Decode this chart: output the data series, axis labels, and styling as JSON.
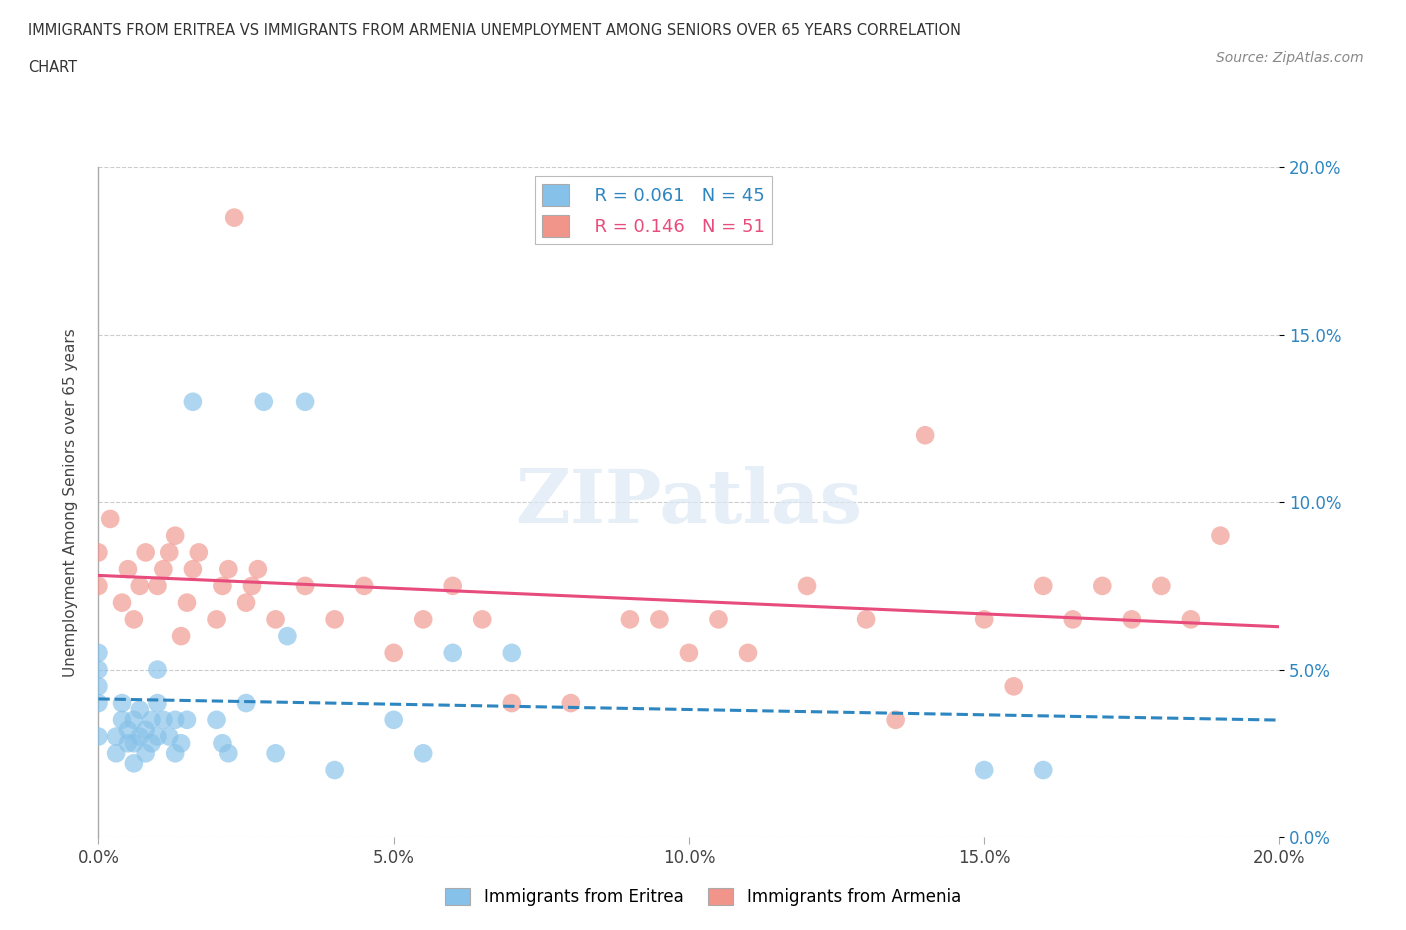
{
  "title_line1": "IMMIGRANTS FROM ERITREA VS IMMIGRANTS FROM ARMENIA UNEMPLOYMENT AMONG SENIORS OVER 65 YEARS CORRELATION",
  "title_line2": "CHART",
  "source": "Source: ZipAtlas.com",
  "ylabel": "Unemployment Among Seniors over 65 years",
  "xlim": [
    0.0,
    0.2
  ],
  "ylim": [
    0.0,
    0.2
  ],
  "xticks": [
    0.0,
    0.05,
    0.1,
    0.15,
    0.2
  ],
  "yticks": [
    0.0,
    0.05,
    0.1,
    0.15,
    0.2
  ],
  "xticklabels": [
    "0.0%",
    "5.0%",
    "10.0%",
    "15.0%",
    "20.0%"
  ],
  "yticklabels": [
    "0.0%",
    "5.0%",
    "10.0%",
    "15.0%",
    "20.0%"
  ],
  "legend_eritrea_R": "0.061",
  "legend_eritrea_N": "45",
  "legend_armenia_R": "0.146",
  "legend_armenia_N": "51",
  "eritrea_color": "#85C1E9",
  "armenia_color": "#F1948A",
  "eritrea_line_color": "#2E86C1",
  "armenia_line_color": "#E74C7C",
  "background_color": "#ffffff",
  "grid_color": "#cccccc",
  "watermark": "ZIPatlas",
  "eritrea_x": [
    0.0,
    0.0,
    0.0,
    0.0,
    0.0,
    0.003,
    0.003,
    0.004,
    0.004,
    0.005,
    0.005,
    0.006,
    0.006,
    0.006,
    0.007,
    0.007,
    0.008,
    0.008,
    0.009,
    0.009,
    0.01,
    0.01,
    0.01,
    0.011,
    0.012,
    0.013,
    0.013,
    0.014,
    0.015,
    0.016,
    0.02,
    0.021,
    0.022,
    0.025,
    0.028,
    0.03,
    0.032,
    0.035,
    0.04,
    0.05,
    0.055,
    0.06,
    0.07,
    0.15,
    0.16
  ],
  "eritrea_y": [
    0.03,
    0.04,
    0.045,
    0.05,
    0.055,
    0.025,
    0.03,
    0.035,
    0.04,
    0.028,
    0.032,
    0.022,
    0.028,
    0.035,
    0.03,
    0.038,
    0.025,
    0.032,
    0.028,
    0.035,
    0.03,
    0.04,
    0.05,
    0.035,
    0.03,
    0.025,
    0.035,
    0.028,
    0.035,
    0.13,
    0.035,
    0.028,
    0.025,
    0.04,
    0.13,
    0.025,
    0.06,
    0.13,
    0.02,
    0.035,
    0.025,
    0.055,
    0.055,
    0.02,
    0.02
  ],
  "armenia_x": [
    0.0,
    0.0,
    0.002,
    0.004,
    0.005,
    0.006,
    0.007,
    0.008,
    0.01,
    0.011,
    0.012,
    0.013,
    0.014,
    0.015,
    0.016,
    0.017,
    0.02,
    0.021,
    0.022,
    0.023,
    0.025,
    0.026,
    0.027,
    0.03,
    0.035,
    0.04,
    0.045,
    0.05,
    0.055,
    0.06,
    0.065,
    0.07,
    0.08,
    0.09,
    0.095,
    0.1,
    0.105,
    0.11,
    0.12,
    0.13,
    0.135,
    0.14,
    0.15,
    0.155,
    0.16,
    0.165,
    0.17,
    0.175,
    0.18,
    0.185,
    0.19
  ],
  "armenia_y": [
    0.075,
    0.085,
    0.095,
    0.07,
    0.08,
    0.065,
    0.075,
    0.085,
    0.075,
    0.08,
    0.085,
    0.09,
    0.06,
    0.07,
    0.08,
    0.085,
    0.065,
    0.075,
    0.08,
    0.185,
    0.07,
    0.075,
    0.08,
    0.065,
    0.075,
    0.065,
    0.075,
    0.055,
    0.065,
    0.075,
    0.065,
    0.04,
    0.04,
    0.065,
    0.065,
    0.055,
    0.065,
    0.055,
    0.075,
    0.065,
    0.035,
    0.12,
    0.065,
    0.045,
    0.075,
    0.065,
    0.075,
    0.065,
    0.075,
    0.065,
    0.09
  ]
}
